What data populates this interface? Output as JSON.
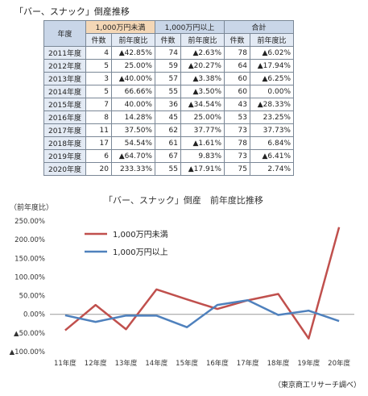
{
  "table": {
    "title": "「バー、スナック」倒産推移",
    "corner_label": "年度",
    "groups": [
      "1,000万円未満",
      "1,000万円以上",
      "合計"
    ],
    "subheaders": [
      "件数",
      "前年度比"
    ],
    "rows": [
      {
        "year": "2011年度",
        "u_n": "4",
        "u_r": "▲42.85%",
        "o_n": "74",
        "o_r": "▲2.63%",
        "t_n": "78",
        "t_r": "▲6.02%"
      },
      {
        "year": "2012年度",
        "u_n": "5",
        "u_r": "25.00%",
        "o_n": "59",
        "o_r": "▲20.27%",
        "t_n": "64",
        "t_r": "▲17.94%"
      },
      {
        "year": "2013年度",
        "u_n": "3",
        "u_r": "▲40.00%",
        "o_n": "57",
        "o_r": "▲3.38%",
        "t_n": "60",
        "t_r": "▲6.25%"
      },
      {
        "year": "2014年度",
        "u_n": "5",
        "u_r": "66.66%",
        "o_n": "55",
        "o_r": "▲3.50%",
        "t_n": "60",
        "t_r": "0.00%"
      },
      {
        "year": "2015年度",
        "u_n": "7",
        "u_r": "40.00%",
        "o_n": "36",
        "o_r": "▲34.54%",
        "t_n": "43",
        "t_r": "▲28.33%"
      },
      {
        "year": "2016年度",
        "u_n": "8",
        "u_r": "14.28%",
        "o_n": "45",
        "o_r": "25.00%",
        "t_n": "53",
        "t_r": "23.25%"
      },
      {
        "year": "2017年度",
        "u_n": "11",
        "u_r": "37.50%",
        "o_n": "62",
        "o_r": "37.77%",
        "t_n": "73",
        "t_r": "37.73%"
      },
      {
        "year": "2018年度",
        "u_n": "17",
        "u_r": "54.54%",
        "o_n": "61",
        "o_r": "▲1.61%",
        "t_n": "78",
        "t_r": "6.84%"
      },
      {
        "year": "2019年度",
        "u_n": "6",
        "u_r": "▲64.70%",
        "o_n": "67",
        "o_r": "9.83%",
        "t_n": "73",
        "t_r": "▲6.41%"
      },
      {
        "year": "2020年度",
        "u_n": "20",
        "u_r": "233.33%",
        "o_n": "55",
        "o_r": "▲17.91%",
        "t_n": "75",
        "t_r": "2.74%"
      }
    ]
  },
  "chart_data": {
    "type": "line",
    "title": "「バー、スナック」倒産　前年度比推移",
    "ylabel": "（前年度比）",
    "source_note": "（東京商工リサーチ調べ）",
    "categories": [
      "11年度",
      "12年度",
      "13年度",
      "14年度",
      "15年度",
      "16年度",
      "17年度",
      "18年度",
      "19年度",
      "20年度"
    ],
    "ylim": [
      -100,
      250
    ],
    "ytick_values": [
      250,
      200,
      150,
      100,
      50,
      0,
      -50,
      -100
    ],
    "ytick_labels": [
      "250.00%",
      "200.00%",
      "150.00%",
      "100.00%",
      "50.00%",
      "0.00%",
      "▲50.00%",
      "▲100.00%"
    ],
    "grid": false,
    "legend_position": "top-left",
    "series": [
      {
        "name": "1,000万円未満",
        "color": "#c0504d",
        "values": [
          -42.85,
          25.0,
          -40.0,
          66.66,
          40.0,
          14.28,
          37.5,
          54.54,
          -64.7,
          233.33
        ]
      },
      {
        "name": "1,000万円以上",
        "color": "#4f81bd",
        "values": [
          -2.63,
          -20.27,
          -3.38,
          -3.5,
          -34.54,
          25.0,
          37.77,
          -1.61,
          9.83,
          -17.91
        ]
      }
    ]
  }
}
